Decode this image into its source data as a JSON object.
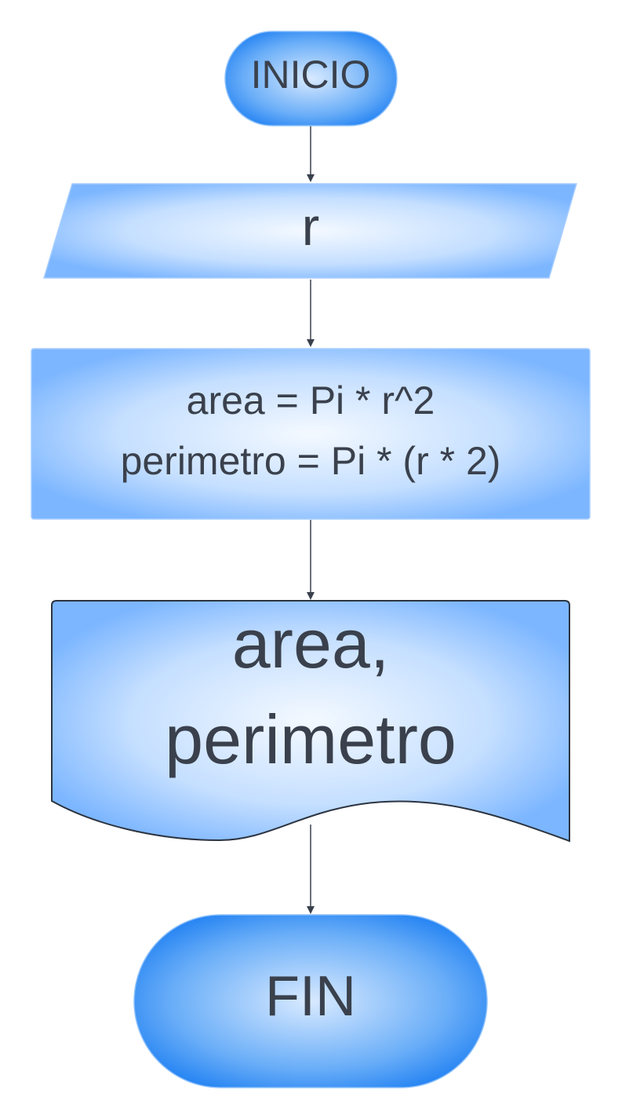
{
  "flowchart": {
    "start": {
      "label": "INICIO"
    },
    "input": {
      "label": "r"
    },
    "process": {
      "lines": [
        "area = Pi * r^2",
        "perimetro = Pi * (r * 2)"
      ]
    },
    "output": {
      "lines": [
        "area,",
        "perimetro"
      ]
    },
    "end": {
      "label": "FIN"
    }
  },
  "colors": {
    "shape_edge": "#1f7ff0",
    "shape_center": "#f2f8ff",
    "text": "#3a414d",
    "connector": "#3a414d",
    "background": "#ffffff"
  }
}
